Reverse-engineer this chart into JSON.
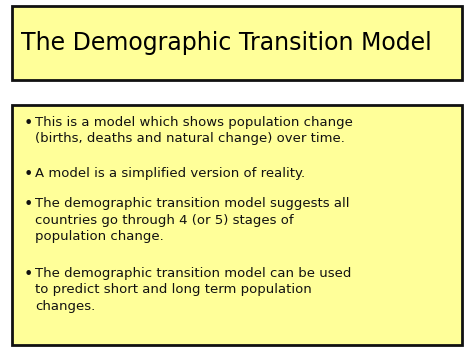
{
  "title": "The Demographic Transition Model",
  "title_fontsize": 17,
  "title_bg_color": "#FFFF99",
  "title_border_color": "#111111",
  "body_bg_color": "#FFFF99",
  "body_border_color": "#111111",
  "slide_bg_color": "#FFFFFF",
  "bullet_points": [
    "This is a model which shows population change\n(births, deaths and natural change) over time.",
    "A model is a simplified version of reality.",
    "The demographic transition model suggests all\ncountries go through 4 (or 5) stages of\npopulation change.",
    "The demographic transition model can be used\nto predict short and long term population\nchanges."
  ],
  "bullet_fontsize": 9.5,
  "bullet_color": "#111111",
  "font_family": "DejaVu Sans"
}
